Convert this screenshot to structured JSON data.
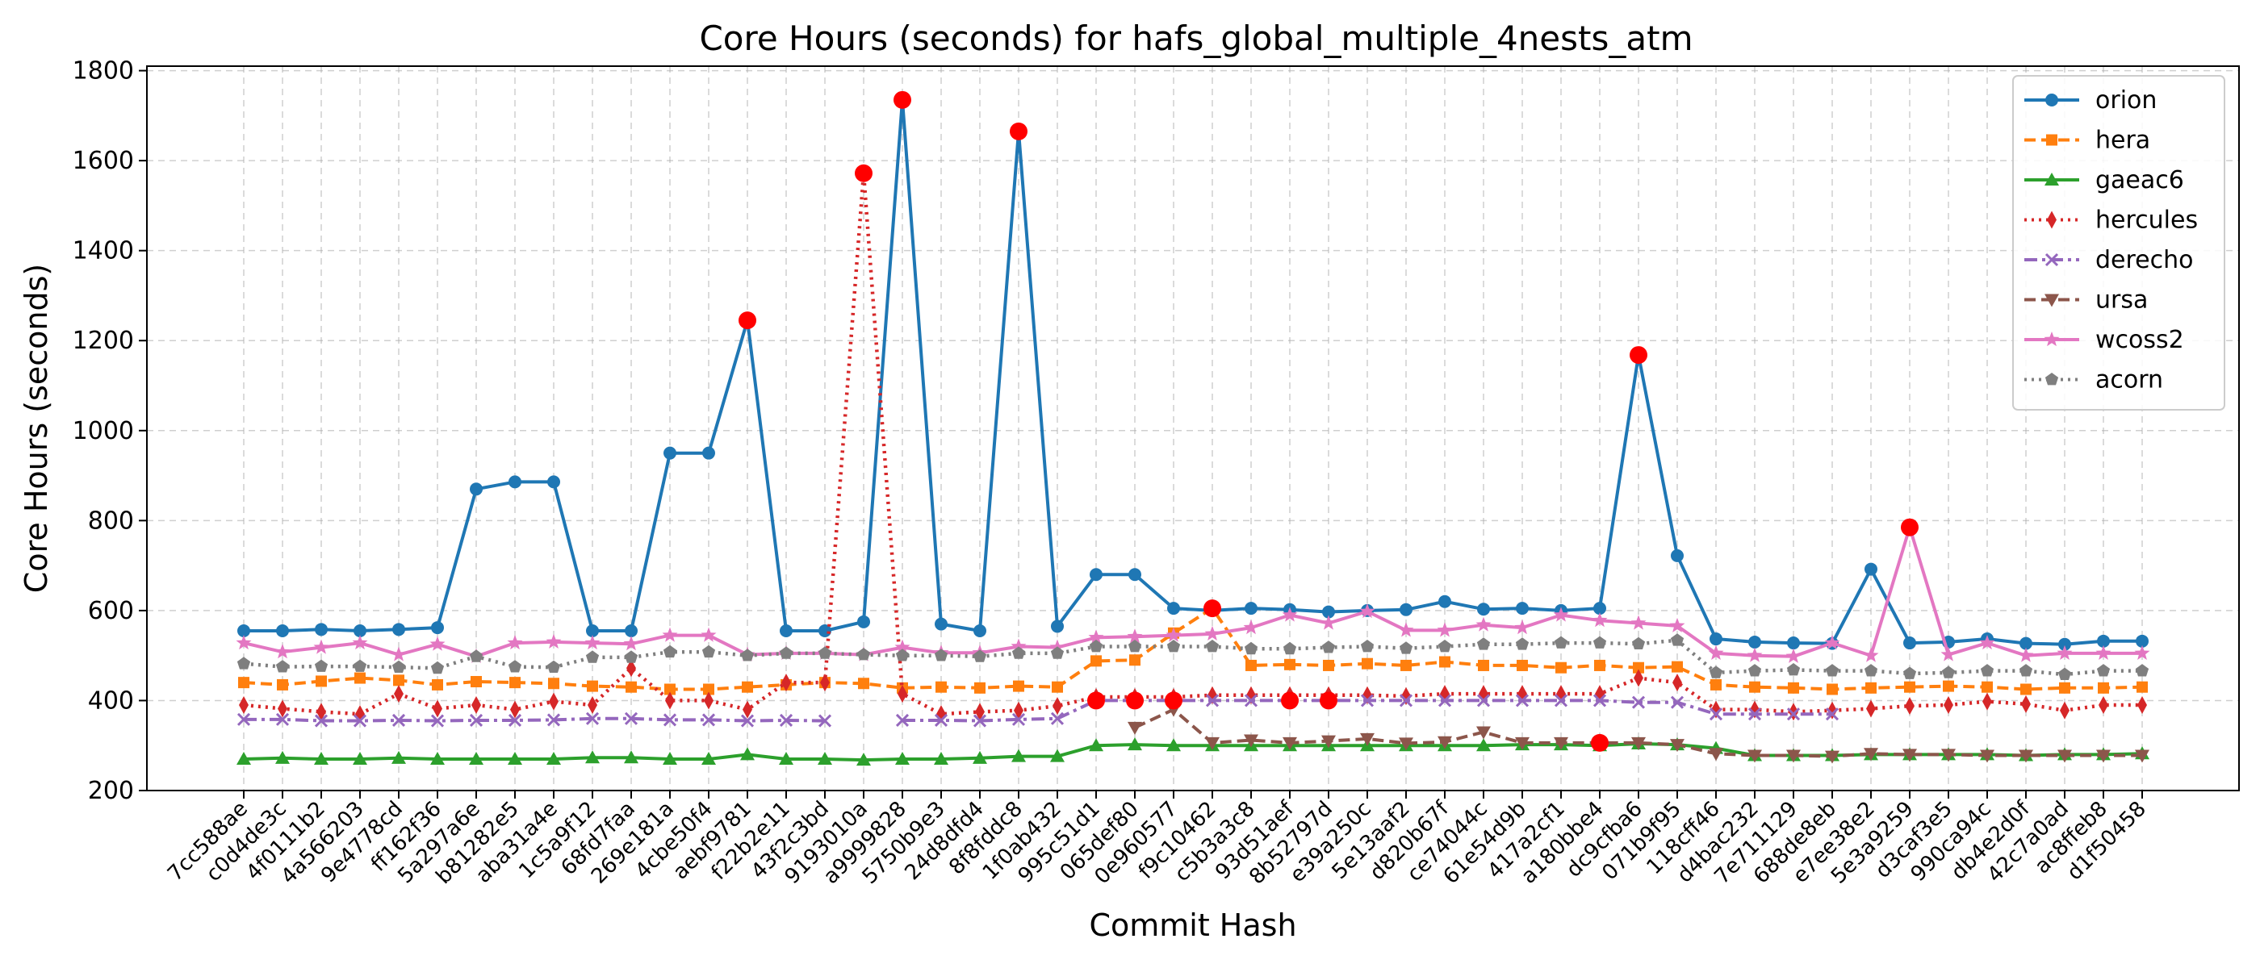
{
  "chart_data": {
    "type": "line",
    "title": "Core Hours (seconds) for hafs_global_multiple_4nests_atm",
    "xlabel": "Commit Hash",
    "ylabel": "Core Hours (seconds)",
    "ylim": [
      200,
      1810
    ],
    "yticks": [
      200,
      400,
      600,
      800,
      1000,
      1200,
      1400,
      1600,
      1800
    ],
    "grid": true,
    "legend_position": "top-right",
    "categories": [
      "7cc588ae",
      "c0d4de3c",
      "4f0111b2",
      "4a566203",
      "9e4778cd",
      "ff162f36",
      "5a297a6e",
      "b81282e5",
      "aba31a4e",
      "1c5a9f12",
      "68fd7faa",
      "269e181a",
      "4cbe50f4",
      "aebf9781",
      "f22b2e11",
      "43f2c3bd",
      "9193010a",
      "a9999828",
      "5750b9e3",
      "24d8dfd4",
      "8f8fddc8",
      "1f0ab432",
      "995c51d1",
      "065def80",
      "0e960577",
      "f9c10462",
      "c5b3a3c8",
      "93d51aef",
      "8b52797d",
      "e39a250c",
      "5e13aaf2",
      "d820b67f",
      "ce74044c",
      "61e54d9b",
      "417a2cf1",
      "a180bbe4",
      "dc9cfba6",
      "071b9f95",
      "118cff46",
      "d4bac232",
      "7e711129",
      "688de8eb",
      "e7ee38e2",
      "5e3a9259",
      "d3caf3e5",
      "990ca94c",
      "db4e2d0f",
      "42c7a0ad",
      "ac8ffeb8",
      "d1f50458"
    ],
    "series": [
      {
        "name": "orion",
        "color": "#1f77b4",
        "marker": "circle",
        "dash": "solid",
        "values": [
          555,
          555,
          558,
          555,
          558,
          562,
          870,
          886,
          886,
          555,
          555,
          950,
          950,
          1245,
          555,
          555,
          575,
          1735,
          570,
          555,
          1665,
          565,
          680,
          680,
          605,
          600,
          605,
          602,
          597,
          600,
          602,
          620,
          603,
          605,
          600,
          605,
          1168,
          722,
          537,
          530,
          528,
          527,
          692,
          528,
          530,
          537,
          527,
          525,
          532,
          532
        ],
        "anomalies": [
          13,
          17,
          20,
          36
        ]
      },
      {
        "name": "hera",
        "color": "#ff7f0e",
        "marker": "square",
        "dash": "dashed",
        "values": [
          440,
          435,
          443,
          450,
          445,
          435,
          442,
          440,
          438,
          432,
          430,
          425,
          425,
          430,
          435,
          440,
          438,
          428,
          430,
          428,
          432,
          430,
          488,
          490,
          550,
          605,
          478,
          480,
          478,
          482,
          478,
          486,
          478,
          478,
          473,
          478,
          473,
          475,
          435,
          430,
          428,
          425,
          428,
          430,
          432,
          430,
          425,
          428,
          428,
          430
        ],
        "anomalies": [
          25
        ]
      },
      {
        "name": "gaeac6",
        "color": "#2ca02c",
        "marker": "triangle-up",
        "dash": "solid",
        "values": [
          270,
          272,
          270,
          270,
          272,
          270,
          270,
          270,
          270,
          273,
          273,
          270,
          270,
          280,
          270,
          270,
          268,
          270,
          270,
          272,
          276,
          276,
          300,
          302,
          300,
          300,
          300,
          300,
          300,
          300,
          300,
          300,
          300,
          302,
          302,
          300,
          304,
          302,
          294,
          278,
          278,
          278,
          280,
          280,
          280,
          280,
          278,
          280,
          280,
          282
        ],
        "anomalies": []
      },
      {
        "name": "hercules",
        "color": "#d62728",
        "marker": "thin-diamond",
        "dash": "dotted",
        "values": [
          390,
          382,
          375,
          370,
          415,
          382,
          390,
          380,
          398,
          390,
          472,
          400,
          400,
          380,
          440,
          440,
          1572,
          415,
          370,
          375,
          378,
          388,
          408,
          408,
          408,
          412,
          412,
          412,
          412,
          412,
          410,
          415,
          415,
          415,
          415,
          415,
          450,
          440,
          380,
          380,
          375,
          378,
          382,
          388,
          390,
          398,
          392,
          378,
          390,
          390
        ],
        "anomalies": [
          16
        ]
      },
      {
        "name": "derecho",
        "color": "#9467bd",
        "marker": "x",
        "dash": "dashdot",
        "values": [
          358,
          358,
          355,
          355,
          356,
          355,
          356,
          356,
          357,
          360,
          360,
          357,
          357,
          355,
          356,
          355,
          null,
          356,
          356,
          355,
          358,
          360,
          400,
          400,
          400,
          400,
          400,
          400,
          400,
          400,
          400,
          400,
          400,
          400,
          400,
          400,
          396,
          396,
          370,
          370,
          370,
          370,
          null,
          null,
          null,
          null,
          null,
          null,
          null,
          null
        ],
        "anomalies": [
          22,
          23,
          24,
          27,
          28
        ]
      },
      {
        "name": "ursa",
        "color": "#8c564b",
        "marker": "triangle-down",
        "dash": "dashed",
        "values": [
          null,
          null,
          null,
          null,
          null,
          null,
          null,
          null,
          null,
          null,
          null,
          null,
          null,
          null,
          null,
          null,
          null,
          null,
          null,
          null,
          null,
          null,
          null,
          340,
          380,
          306,
          312,
          306,
          310,
          315,
          305,
          308,
          330,
          306,
          306,
          306,
          306,
          302,
          282,
          278,
          278,
          276,
          282,
          280,
          280,
          278,
          278,
          278,
          278,
          278
        ],
        "anomalies": [
          35
        ]
      },
      {
        "name": "wcoss2",
        "color": "#e377c2",
        "marker": "star",
        "dash": "solid",
        "values": [
          528,
          508,
          518,
          528,
          502,
          525,
          498,
          528,
          530,
          528,
          526,
          545,
          545,
          502,
          505,
          505,
          502,
          518,
          506,
          506,
          520,
          518,
          540,
          542,
          545,
          548,
          562,
          590,
          572,
          598,
          556,
          556,
          568,
          562,
          590,
          578,
          572,
          566,
          505,
          500,
          498,
          528,
          500,
          785,
          502,
          528,
          500,
          505,
          505,
          505
        ],
        "anomalies": [
          43
        ]
      },
      {
        "name": "acorn",
        "color": "#7f7f7f",
        "marker": "pentagon",
        "dash": "dotted",
        "values": [
          482,
          475,
          476,
          476,
          474,
          472,
          498,
          475,
          474,
          496,
          496,
          508,
          508,
          500,
          505,
          505,
          502,
          500,
          500,
          498,
          505,
          505,
          520,
          520,
          520,
          520,
          515,
          515,
          518,
          520,
          516,
          520,
          525,
          525,
          528,
          528,
          526,
          534,
          462,
          466,
          468,
          466,
          466,
          460,
          462,
          466,
          466,
          458,
          466,
          466
        ],
        "anomalies": []
      }
    ]
  }
}
